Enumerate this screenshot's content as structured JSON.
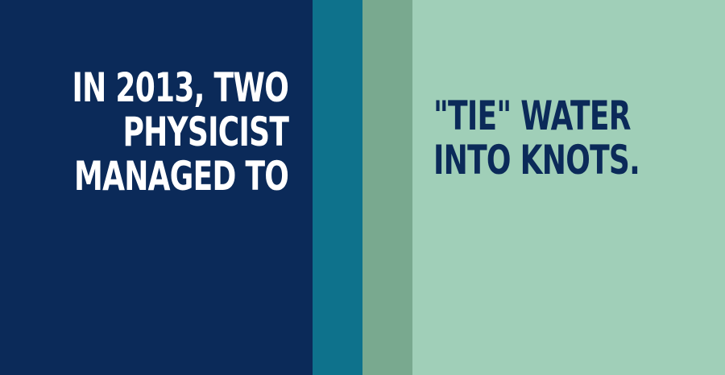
{
  "graphic": {
    "left_text": [
      "IN 2013, TWO",
      "PHYSICIST",
      "MANAGED TO"
    ],
    "right_text": [
      "\"TIE\" WATER",
      "INTO KNOTS."
    ]
  },
  "colors": {
    "navy": "#0b2a59",
    "teal": "#0e728c",
    "sage": "#79a98f",
    "mint": "#a0cfb8",
    "white": "#ffffff"
  }
}
